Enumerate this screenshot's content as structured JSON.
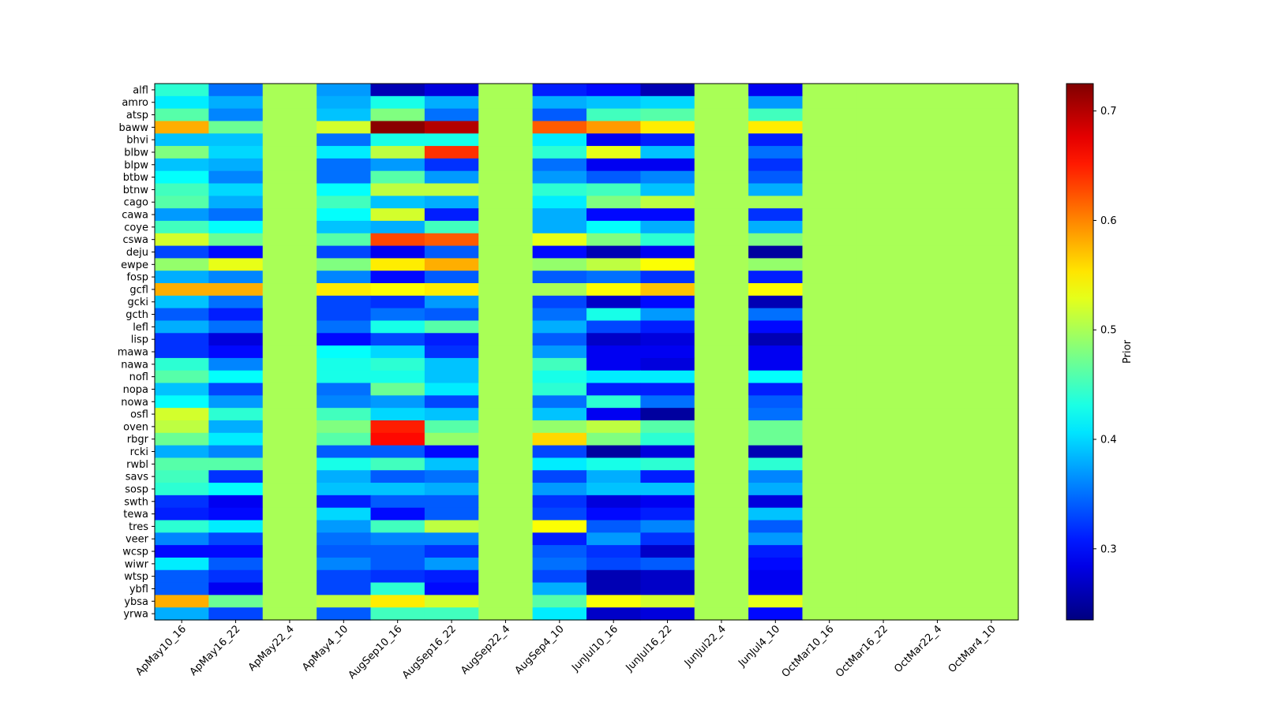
{
  "chart_data": {
    "type": "heatmap",
    "title": "",
    "xlabel": "",
    "ylabel": "",
    "colormap": "jet",
    "colorbar": {
      "label": "Prior",
      "vmin": 0.235,
      "vmax": 0.725,
      "ticks": [
        0.3,
        0.4,
        0.5,
        0.6,
        0.7
      ],
      "tick_labels": [
        "0.3",
        "0.4",
        "0.5",
        "0.6",
        "0.7"
      ]
    },
    "x_labels": [
      "ApMay10_16",
      "ApMay16_22",
      "ApMay22_4",
      "ApMay4_10",
      "AugSep10_16",
      "AugSep16_22",
      "AugSep22_4",
      "AugSep4_10",
      "JunJul10_16",
      "JunJul16_22",
      "JunJul22_4",
      "JunJul4_10",
      "OctMar10_16",
      "OctMar16_22",
      "OctMar22_4",
      "OctMar4_10"
    ],
    "y_labels": [
      "alfl",
      "amro",
      "atsp",
      "baww",
      "bhvi",
      "blbw",
      "blpw",
      "btbw",
      "btnw",
      "cago",
      "cawa",
      "coye",
      "cswa",
      "deju",
      "ewpe",
      "fosp",
      "gcfl",
      "gcki",
      "gcth",
      "lefl",
      "lisp",
      "mawa",
      "nawa",
      "nofl",
      "nopa",
      "nowa",
      "osfl",
      "oven",
      "rbgr",
      "rcki",
      "rwbl",
      "savs",
      "sosp",
      "swth",
      "tewa",
      "tres",
      "veer",
      "wcsp",
      "wiwr",
      "wtsp",
      "ybfl",
      "ybsa",
      "yrwa"
    ],
    "values": [
      [
        0.44,
        0.35,
        0.5,
        0.37,
        0.26,
        0.28,
        0.5,
        0.31,
        0.3,
        0.26,
        0.5,
        0.29,
        0.5,
        0.5,
        0.5,
        0.5
      ],
      [
        0.41,
        0.38,
        0.5,
        0.38,
        0.43,
        0.38,
        0.5,
        0.38,
        0.39,
        0.4,
        0.5,
        0.37,
        0.5,
        0.5,
        0.5,
        0.5
      ],
      [
        0.46,
        0.36,
        0.5,
        0.39,
        0.48,
        0.35,
        0.5,
        0.34,
        0.45,
        0.46,
        0.5,
        0.45,
        0.5,
        0.5,
        0.5,
        0.5
      ],
      [
        0.58,
        0.47,
        0.5,
        0.52,
        0.72,
        0.7,
        0.5,
        0.62,
        0.59,
        0.55,
        0.5,
        0.55,
        0.5,
        0.5,
        0.5,
        0.5
      ],
      [
        0.39,
        0.39,
        0.5,
        0.35,
        0.43,
        0.43,
        0.5,
        0.41,
        0.29,
        0.31,
        0.5,
        0.31,
        0.5,
        0.5,
        0.5,
        0.5
      ],
      [
        0.48,
        0.4,
        0.5,
        0.41,
        0.51,
        0.64,
        0.5,
        0.44,
        0.53,
        0.39,
        0.5,
        0.35,
        0.5,
        0.5,
        0.5,
        0.5
      ],
      [
        0.39,
        0.38,
        0.5,
        0.35,
        0.37,
        0.32,
        0.5,
        0.35,
        0.29,
        0.29,
        0.5,
        0.32,
        0.5,
        0.5,
        0.5,
        0.5
      ],
      [
        0.42,
        0.36,
        0.5,
        0.35,
        0.46,
        0.37,
        0.5,
        0.37,
        0.34,
        0.36,
        0.5,
        0.34,
        0.5,
        0.5,
        0.5,
        0.5
      ],
      [
        0.45,
        0.4,
        0.5,
        0.42,
        0.51,
        0.51,
        0.5,
        0.44,
        0.45,
        0.39,
        0.5,
        0.38,
        0.5,
        0.5,
        0.5,
        0.5
      ],
      [
        0.46,
        0.38,
        0.5,
        0.45,
        0.39,
        0.38,
        0.5,
        0.41,
        0.48,
        0.51,
        0.5,
        0.5,
        0.5,
        0.5,
        0.5,
        0.5
      ],
      [
        0.37,
        0.35,
        0.5,
        0.42,
        0.52,
        0.31,
        0.5,
        0.38,
        0.3,
        0.3,
        0.5,
        0.32,
        0.5,
        0.5,
        0.5,
        0.5
      ],
      [
        0.45,
        0.42,
        0.5,
        0.39,
        0.38,
        0.45,
        0.5,
        0.38,
        0.42,
        0.38,
        0.5,
        0.38,
        0.5,
        0.5,
        0.5,
        0.5
      ],
      [
        0.52,
        0.47,
        0.5,
        0.46,
        0.63,
        0.62,
        0.5,
        0.53,
        0.48,
        0.44,
        0.5,
        0.48,
        0.5,
        0.5,
        0.5,
        0.5
      ],
      [
        0.33,
        0.3,
        0.5,
        0.33,
        0.29,
        0.34,
        0.5,
        0.3,
        0.26,
        0.29,
        0.5,
        0.25,
        0.5,
        0.5,
        0.5,
        0.5
      ],
      [
        0.49,
        0.53,
        0.5,
        0.48,
        0.55,
        0.58,
        0.5,
        0.49,
        0.51,
        0.54,
        0.5,
        0.49,
        0.5,
        0.5,
        0.5,
        0.5
      ],
      [
        0.38,
        0.36,
        0.5,
        0.36,
        0.3,
        0.34,
        0.5,
        0.34,
        0.35,
        0.32,
        0.5,
        0.31,
        0.5,
        0.5,
        0.5,
        0.5
      ],
      [
        0.58,
        0.58,
        0.5,
        0.55,
        0.54,
        0.55,
        0.5,
        0.5,
        0.54,
        0.57,
        0.5,
        0.54,
        0.5,
        0.5,
        0.5,
        0.5
      ],
      [
        0.39,
        0.35,
        0.5,
        0.33,
        0.32,
        0.37,
        0.5,
        0.33,
        0.27,
        0.3,
        0.5,
        0.26,
        0.5,
        0.5,
        0.5,
        0.5
      ],
      [
        0.34,
        0.31,
        0.5,
        0.33,
        0.35,
        0.34,
        0.5,
        0.35,
        0.43,
        0.37,
        0.5,
        0.35,
        0.5,
        0.5,
        0.5,
        0.5
      ],
      [
        0.38,
        0.35,
        0.5,
        0.35,
        0.43,
        0.46,
        0.5,
        0.38,
        0.33,
        0.31,
        0.5,
        0.3,
        0.5,
        0.5,
        0.5,
        0.5
      ],
      [
        0.32,
        0.28,
        0.5,
        0.3,
        0.33,
        0.31,
        0.5,
        0.34,
        0.27,
        0.28,
        0.5,
        0.26,
        0.5,
        0.5,
        0.5,
        0.5
      ],
      [
        0.32,
        0.3,
        0.5,
        0.42,
        0.4,
        0.32,
        0.5,
        0.37,
        0.29,
        0.29,
        0.5,
        0.29,
        0.5,
        0.5,
        0.5,
        0.5
      ],
      [
        0.44,
        0.36,
        0.5,
        0.43,
        0.44,
        0.39,
        0.5,
        0.45,
        0.29,
        0.28,
        0.5,
        0.29,
        0.5,
        0.5,
        0.5,
        0.5
      ],
      [
        0.46,
        0.42,
        0.5,
        0.43,
        0.43,
        0.39,
        0.5,
        0.43,
        0.41,
        0.41,
        0.5,
        0.42,
        0.5,
        0.5,
        0.5,
        0.5
      ],
      [
        0.39,
        0.33,
        0.5,
        0.35,
        0.47,
        0.41,
        0.5,
        0.44,
        0.31,
        0.31,
        0.5,
        0.31,
        0.5,
        0.5,
        0.5,
        0.5
      ],
      [
        0.42,
        0.37,
        0.5,
        0.36,
        0.37,
        0.33,
        0.5,
        0.35,
        0.44,
        0.35,
        0.5,
        0.34,
        0.5,
        0.5,
        0.5,
        0.5
      ],
      [
        0.52,
        0.44,
        0.5,
        0.45,
        0.4,
        0.39,
        0.5,
        0.39,
        0.29,
        0.25,
        0.5,
        0.35,
        0.5,
        0.5,
        0.5,
        0.5
      ],
      [
        0.51,
        0.38,
        0.5,
        0.48,
        0.65,
        0.46,
        0.5,
        0.49,
        0.51,
        0.46,
        0.5,
        0.47,
        0.5,
        0.5,
        0.5,
        0.5
      ],
      [
        0.47,
        0.41,
        0.5,
        0.46,
        0.66,
        0.49,
        0.5,
        0.56,
        0.48,
        0.44,
        0.5,
        0.47,
        0.5,
        0.5,
        0.5,
        0.5
      ],
      [
        0.38,
        0.36,
        0.5,
        0.34,
        0.34,
        0.3,
        0.5,
        0.33,
        0.25,
        0.28,
        0.5,
        0.26,
        0.5,
        0.5,
        0.5,
        0.5
      ],
      [
        0.46,
        0.46,
        0.5,
        0.43,
        0.45,
        0.39,
        0.5,
        0.41,
        0.43,
        0.44,
        0.5,
        0.44,
        0.5,
        0.5,
        0.5,
        0.5
      ],
      [
        0.45,
        0.32,
        0.5,
        0.38,
        0.34,
        0.35,
        0.5,
        0.33,
        0.38,
        0.31,
        0.5,
        0.36,
        0.5,
        0.5,
        0.5,
        0.5
      ],
      [
        0.44,
        0.42,
        0.5,
        0.39,
        0.39,
        0.38,
        0.5,
        0.37,
        0.39,
        0.39,
        0.5,
        0.38,
        0.5,
        0.5,
        0.5,
        0.5
      ],
      [
        0.32,
        0.29,
        0.5,
        0.31,
        0.34,
        0.34,
        0.5,
        0.32,
        0.28,
        0.29,
        0.5,
        0.28,
        0.5,
        0.5,
        0.5,
        0.5
      ],
      [
        0.31,
        0.3,
        0.5,
        0.4,
        0.3,
        0.34,
        0.5,
        0.33,
        0.3,
        0.31,
        0.5,
        0.39,
        0.5,
        0.5,
        0.5,
        0.5
      ],
      [
        0.44,
        0.41,
        0.5,
        0.37,
        0.45,
        0.51,
        0.5,
        0.54,
        0.34,
        0.36,
        0.5,
        0.34,
        0.5,
        0.5,
        0.5,
        0.5
      ],
      [
        0.36,
        0.33,
        0.5,
        0.35,
        0.36,
        0.36,
        0.5,
        0.31,
        0.37,
        0.32,
        0.5,
        0.37,
        0.5,
        0.5,
        0.5,
        0.5
      ],
      [
        0.3,
        0.3,
        0.5,
        0.34,
        0.34,
        0.32,
        0.5,
        0.34,
        0.32,
        0.27,
        0.5,
        0.31,
        0.5,
        0.5,
        0.5,
        0.5
      ],
      [
        0.41,
        0.34,
        0.5,
        0.36,
        0.34,
        0.37,
        0.5,
        0.35,
        0.33,
        0.34,
        0.5,
        0.3,
        0.5,
        0.5,
        0.5,
        0.5
      ],
      [
        0.34,
        0.32,
        0.5,
        0.33,
        0.32,
        0.31,
        0.5,
        0.33,
        0.26,
        0.27,
        0.5,
        0.29,
        0.5,
        0.5,
        0.5,
        0.5
      ],
      [
        0.34,
        0.29,
        0.5,
        0.33,
        0.44,
        0.3,
        0.5,
        0.38,
        0.26,
        0.27,
        0.5,
        0.29,
        0.5,
        0.5,
        0.5,
        0.5
      ],
      [
        0.58,
        0.47,
        0.5,
        0.51,
        0.55,
        0.52,
        0.5,
        0.46,
        0.54,
        0.52,
        0.5,
        0.53,
        0.5,
        0.5,
        0.5,
        0.5
      ],
      [
        0.38,
        0.33,
        0.5,
        0.34,
        0.45,
        0.45,
        0.5,
        0.41,
        0.27,
        0.28,
        0.5,
        0.3,
        0.5,
        0.5,
        0.5,
        0.5
      ]
    ]
  }
}
